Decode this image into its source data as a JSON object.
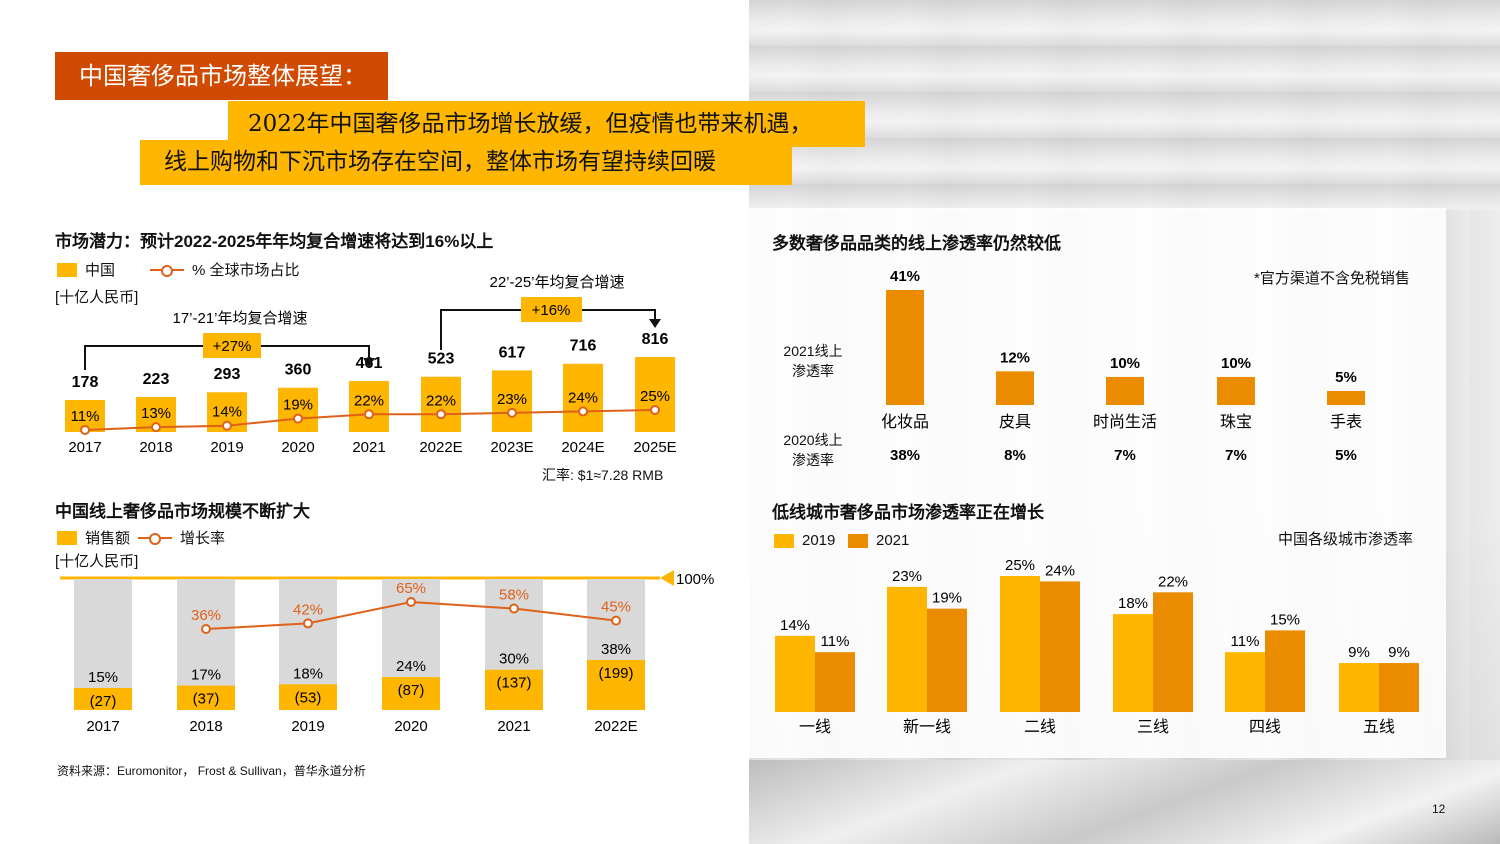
{
  "header": {
    "tag": "中国奢侈品市场整体展望：",
    "line1": "2022年中国奢侈品市场增长放缓，但疫情也带来机遇，",
    "line2": "线上购物和下沉市场存在空间，整体市场有望持续回暖"
  },
  "colors": {
    "orange_red": "#d04a02",
    "yellow": "#ffb600",
    "orange": "#eb8c00",
    "line": "#e0611a",
    "gray_bar": "#d9d9d9"
  },
  "page_number": "12",
  "source": "资料来源：Euromonitor， Frost & Sullivan，普华永道分析",
  "chart_data": [
    {
      "id": "market_potential",
      "type": "bar",
      "title": "市场潜力：预计2022-2025年年均复合增速将达到16%以上",
      "unit": "[十亿人民币]",
      "legend": {
        "bar": "中国",
        "line": "% 全球市场占比"
      },
      "categories": [
        "2017",
        "2018",
        "2019",
        "2020",
        "2021",
        "2022E",
        "2023E",
        "2024E",
        "2025E"
      ],
      "values": [
        178,
        223,
        293,
        360,
        461,
        523,
        617,
        716,
        816
      ],
      "share_labels": [
        "11%",
        "13%",
        "14%",
        "19%",
        "22%",
        "22%",
        "23%",
        "24%",
        "25%"
      ],
      "share": [
        11,
        13,
        14,
        19,
        22,
        22,
        23,
        24,
        25
      ],
      "annotations": [
        {
          "label": "17’-21’年均复合增速",
          "value": "+27%"
        },
        {
          "label": "22’-25’年均复合增速",
          "value": "+16%"
        }
      ],
      "note": "汇率: $1≈7.28 RMB"
    },
    {
      "id": "online_market",
      "type": "bar",
      "title": "中国线上奢侈品市场规模不断扩大",
      "unit": "[十亿人民币]",
      "legend": {
        "bar": "销售额",
        "line": "增长率"
      },
      "full_label": "100%",
      "categories": [
        "2017",
        "2018",
        "2019",
        "2020",
        "2021",
        "2022E"
      ],
      "online_share_labels": [
        "15%",
        "17%",
        "18%",
        "24%",
        "30%",
        "38%"
      ],
      "online_share": [
        15,
        17,
        18,
        24,
        30,
        38
      ],
      "sales_labels": [
        "(27)",
        "(37)",
        "(53)",
        "(87)",
        "(137)",
        "(199)"
      ],
      "sales": [
        27,
        37,
        53,
        87,
        137,
        199
      ],
      "growth_labels": [
        "",
        "36%",
        "42%",
        "65%",
        "58%",
        "45%"
      ],
      "growth": [
        null,
        36,
        42,
        65,
        58,
        45
      ]
    },
    {
      "id": "online_penetration",
      "type": "bar",
      "title": "多数奢侈品品类的线上渗透率仍然较低",
      "note": "*官方渠道不含免税销售",
      "row_label_2021": "2021线上渗透率",
      "row_label_2020": "2020线上渗透率",
      "categories": [
        "化妆品",
        "皮具",
        "时尚生活",
        "珠宝",
        "手表"
      ],
      "values_2021": [
        41,
        12,
        10,
        10,
        5
      ],
      "labels_2021": [
        "41%",
        "12%",
        "10%",
        "10%",
        "5%"
      ],
      "labels_2020": [
        "38%",
        "8%",
        "7%",
        "7%",
        "5%"
      ]
    },
    {
      "id": "lower_tier",
      "type": "bar",
      "title": "低线城市奢侈品市场渗透率正在增长",
      "subtitle": "中国各级城市渗透率",
      "categories": [
        "一线",
        "新一线",
        "二线",
        "三线",
        "四线",
        "五线"
      ],
      "series": [
        {
          "name": "2019",
          "values": [
            14,
            23,
            25,
            18,
            11,
            9
          ],
          "labels": [
            "14%",
            "23%",
            "25%",
            "18%",
            "11%",
            "9%"
          ]
        },
        {
          "name": "2021",
          "values": [
            11,
            19,
            24,
            22,
            15,
            9
          ],
          "labels": [
            "11%",
            "19%",
            "24%",
            "22%",
            "15%",
            "9%"
          ]
        }
      ]
    }
  ]
}
